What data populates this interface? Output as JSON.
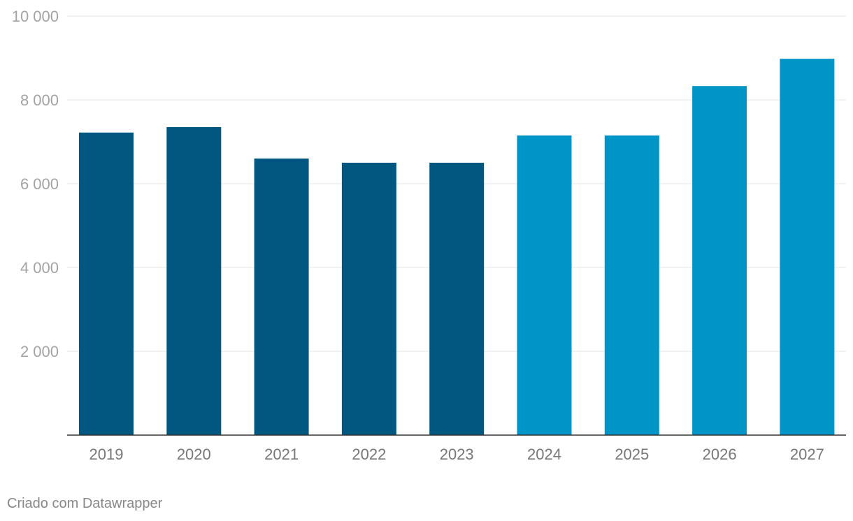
{
  "chart_data": {
    "type": "bar",
    "categories": [
      "2019",
      "2020",
      "2021",
      "2022",
      "2023",
      "2024",
      "2025",
      "2026",
      "2027"
    ],
    "values": [
      7220,
      7350,
      6600,
      6500,
      6500,
      7150,
      7150,
      8330,
      8980
    ],
    "bar_colors": [
      "#025780",
      "#025780",
      "#025780",
      "#025780",
      "#025780",
      "#0194c7",
      "#0194c7",
      "#0194c7",
      "#0194c7"
    ],
    "ylim": [
      0,
      10000
    ],
    "yticks": [
      2000,
      4000,
      6000,
      8000,
      10000
    ],
    "ytick_labels": [
      "2 000",
      "4 000",
      "6 000",
      "8 000",
      "10 000"
    ],
    "title": "",
    "xlabel": "",
    "ylabel": "",
    "grid": true
  },
  "footer": {
    "credit": "Criado com Datawrapper"
  }
}
